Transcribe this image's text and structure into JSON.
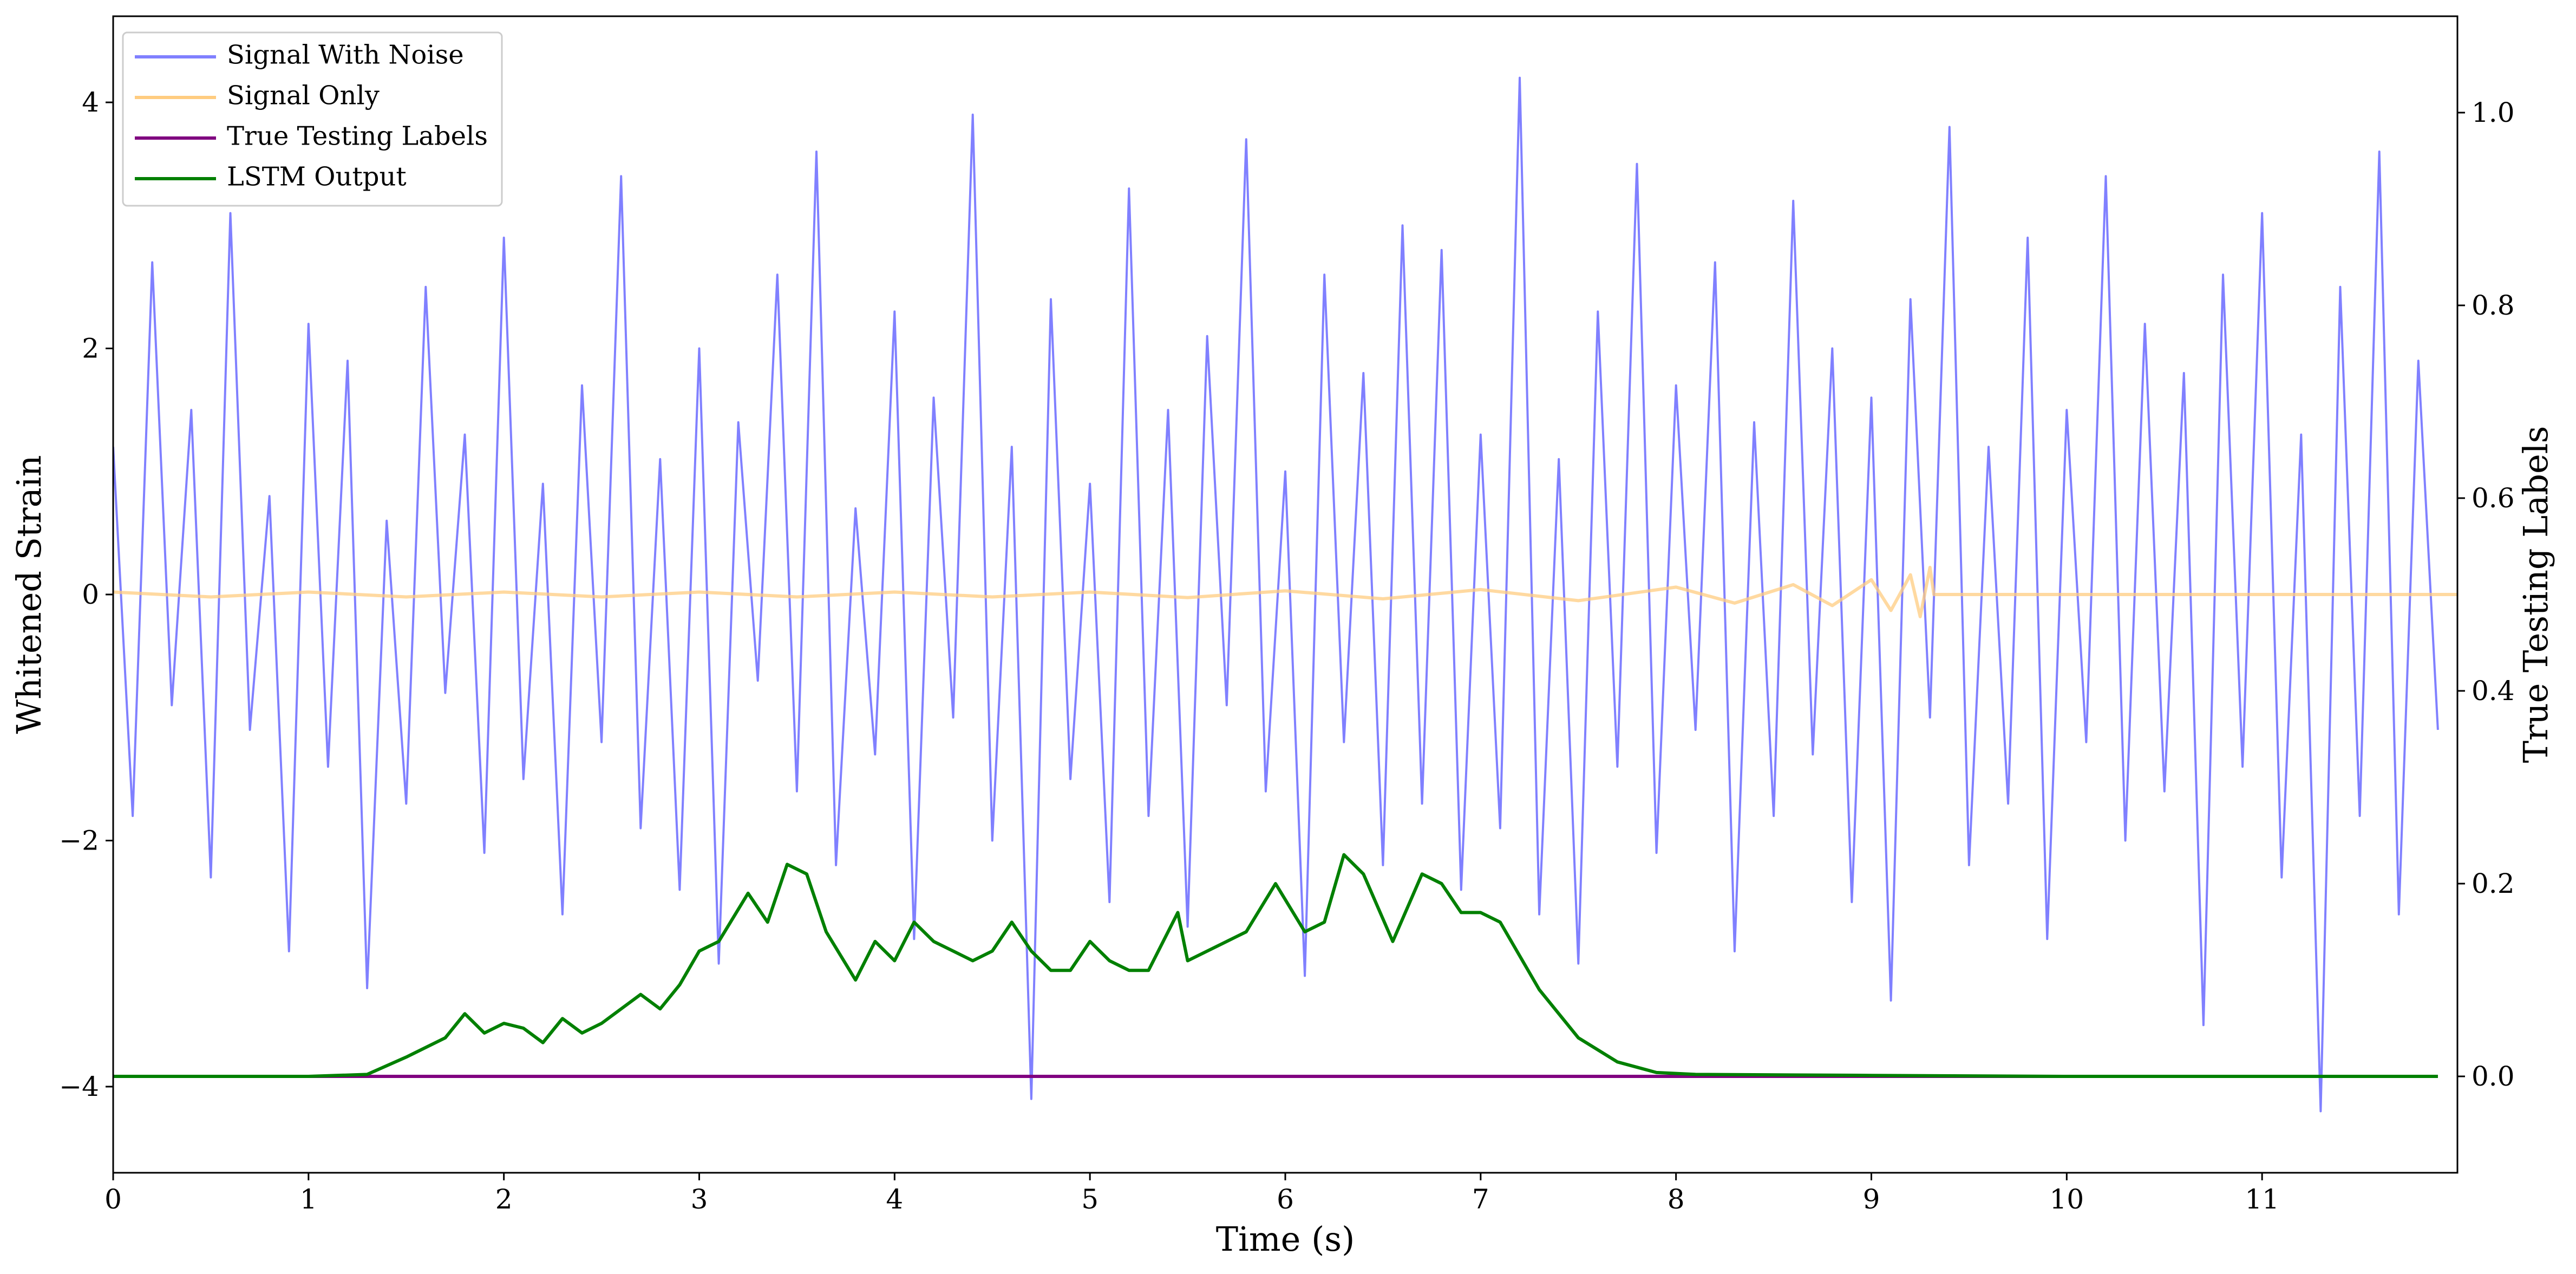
{
  "chart_data": {
    "type": "line",
    "xlabel": "Time (s)",
    "ylabel": "Whitened Strain",
    "y2label": "True Testing Labels",
    "xlim": [
      0,
      12
    ],
    "ylim": [
      -4.7,
      4.7
    ],
    "y2lim": [
      -0.1,
      1.1
    ],
    "xticks": [
      0,
      1,
      2,
      3,
      4,
      5,
      6,
      7,
      8,
      9,
      10,
      11
    ],
    "yticks": [
      {
        "value": -4,
        "label": "−4"
      },
      {
        "value": -2,
        "label": "−2"
      },
      0,
      2,
      4
    ],
    "y2ticks": [
      {
        "value": 0,
        "label": "0.0"
      },
      {
        "value": 0.2,
        "label": "0.2"
      },
      {
        "value": 0.4,
        "label": "0.4"
      },
      {
        "value": 0.6,
        "label": "0.6"
      },
      {
        "value": 0.8,
        "label": "0.8"
      },
      {
        "value": 1,
        "label": "1.0"
      }
    ],
    "legend": "upper left",
    "series": [
      {
        "name": "Signal With Noise",
        "color": "#8080ff",
        "x": [
          0,
          0.1,
          0.2,
          0.3,
          0.4,
          0.5,
          0.6,
          0.7,
          0.8,
          0.9,
          1,
          1.1,
          1.2,
          1.3,
          1.4,
          1.5,
          1.6,
          1.7,
          1.8,
          1.9,
          2,
          2.1,
          2.2,
          2.3,
          2.4,
          2.5,
          2.6,
          2.7,
          2.8,
          2.9,
          3,
          3.1,
          3.2,
          3.3,
          3.4,
          3.5,
          3.6,
          3.7,
          3.8,
          3.9,
          4,
          4.1,
          4.2,
          4.3,
          4.4,
          4.5,
          4.6,
          4.7,
          4.8,
          4.9,
          5,
          5.1,
          5.2,
          5.3,
          5.4,
          5.5,
          5.6,
          5.7,
          5.8,
          5.9,
          6,
          6.1,
          6.2,
          6.3,
          6.4,
          6.5,
          6.6,
          6.7,
          6.8,
          6.9,
          7,
          7.1,
          7.2,
          7.3,
          7.4,
          7.5,
          7.6,
          7.7,
          7.8,
          7.9,
          8,
          8.1,
          8.2,
          8.3,
          8.4,
          8.5,
          8.6,
          8.7,
          8.8,
          8.9,
          9,
          9.1,
          9.2,
          9.3,
          9.4,
          9.5,
          9.6,
          9.7,
          9.8,
          9.9,
          10,
          10.1,
          10.2,
          10.3,
          10.4,
          10.5,
          10.6,
          10.7,
          10.8,
          10.9,
          11,
          11.1,
          11.2,
          11.3,
          11.4,
          11.5,
          11.6,
          11.7,
          11.8,
          11.9
        ],
        "values": [
          1.2,
          -1.8,
          2.7,
          -0.9,
          1.5,
          -2.3,
          3.1,
          -1.1,
          0.8,
          -2.9,
          2.2,
          -1.4,
          1.9,
          -3.2,
          0.6,
          -1.7,
          2.5,
          -0.8,
          1.3,
          -2.1,
          2.9,
          -1.5,
          0.9,
          -2.6,
          1.7,
          -1.2,
          3.4,
          -1.9,
          1.1,
          -2.4,
          2.0,
          -3.0,
          1.4,
          -0.7,
          2.6,
          -1.6,
          3.6,
          -2.2,
          0.7,
          -1.3,
          2.3,
          -2.8,
          1.6,
          -1.0,
          3.9,
          -2.0,
          1.2,
          -4.1,
          2.4,
          -1.5,
          0.9,
          -2.5,
          3.3,
          -1.8,
          1.5,
          -2.7,
          2.1,
          -0.9,
          3.7,
          -1.6,
          1.0,
          -3.1,
          2.6,
          -1.2,
          1.8,
          -2.2,
          3.0,
          -1.7,
          2.8,
          -2.4,
          1.3,
          -1.9,
          4.2,
          -2.6,
          1.1,
          -3.0,
          2.3,
          -1.4,
          3.5,
          -2.1,
          1.7,
          -1.1,
          2.7,
          -2.9,
          1.4,
          -1.8,
          3.2,
          -1.3,
          2.0,
          -2.5,
          1.6,
          -3.3,
          2.4,
          -1.0,
          3.8,
          -2.2,
          1.2,
          -1.7,
          2.9,
          -2.8,
          1.5,
          -1.2,
          3.4,
          -2.0,
          2.2,
          -1.6,
          1.8,
          -3.5,
          2.6,
          -1.4,
          3.1,
          -2.3,
          1.3,
          -4.2,
          2.5,
          -1.8,
          3.6,
          -2.6,
          1.9,
          -1.1
        ]
      },
      {
        "name": "Signal Only",
        "color": "#ffcc80",
        "x": [
          0,
          0.5,
          1,
          1.5,
          2,
          2.5,
          3,
          3.5,
          4,
          4.5,
          5,
          5.5,
          6,
          6.5,
          7,
          7.5,
          8,
          8.3,
          8.6,
          8.8,
          9,
          9.1,
          9.2,
          9.25,
          9.3,
          9.32,
          12
        ],
        "values": [
          0.02,
          -0.02,
          0.02,
          -0.02,
          0.02,
          -0.02,
          0.02,
          -0.02,
          0.02,
          -0.02,
          0.02,
          -0.025,
          0.03,
          -0.035,
          0.04,
          -0.05,
          0.06,
          -0.07,
          0.08,
          -0.09,
          0.12,
          -0.13,
          0.16,
          -0.18,
          0.22,
          0,
          0
        ]
      },
      {
        "name": "True Testing Labels",
        "color": "#800080",
        "axis": "y2",
        "x": [
          0,
          11.9
        ],
        "values": [
          0,
          0
        ]
      },
      {
        "name": "LSTM Output",
        "color": "#008000",
        "axis": "y2",
        "x": [
          0,
          1,
          1.3,
          1.5,
          1.7,
          1.8,
          1.9,
          2,
          2.1,
          2.2,
          2.3,
          2.4,
          2.5,
          2.6,
          2.7,
          2.8,
          2.9,
          3,
          3.1,
          3.25,
          3.35,
          3.45,
          3.55,
          3.65,
          3.8,
          3.9,
          4,
          4.1,
          4.2,
          4.3,
          4.4,
          4.5,
          4.6,
          4.7,
          4.8,
          4.9,
          5,
          5.1,
          5.2,
          5.3,
          5.45,
          5.5,
          5.7,
          5.8,
          5.95,
          6.1,
          6.2,
          6.3,
          6.4,
          6.55,
          6.7,
          6.8,
          6.9,
          7,
          7.1,
          7.3,
          7.5,
          7.7,
          7.9,
          8.1,
          9,
          10,
          11.9
        ],
        "values": [
          0,
          0,
          0.002,
          0.02,
          0.04,
          0.065,
          0.045,
          0.055,
          0.05,
          0.035,
          0.06,
          0.045,
          0.055,
          0.07,
          0.085,
          0.07,
          0.095,
          0.13,
          0.14,
          0.19,
          0.16,
          0.22,
          0.21,
          0.15,
          0.1,
          0.14,
          0.12,
          0.16,
          0.14,
          0.13,
          0.12,
          0.13,
          0.16,
          0.13,
          0.11,
          0.11,
          0.14,
          0.12,
          0.11,
          0.11,
          0.17,
          0.12,
          0.14,
          0.15,
          0.2,
          0.15,
          0.16,
          0.23,
          0.21,
          0.14,
          0.21,
          0.2,
          0.17,
          0.17,
          0.16,
          0.09,
          0.04,
          0.015,
          0.004,
          0.002,
          0.001,
          0,
          0
        ]
      }
    ]
  }
}
